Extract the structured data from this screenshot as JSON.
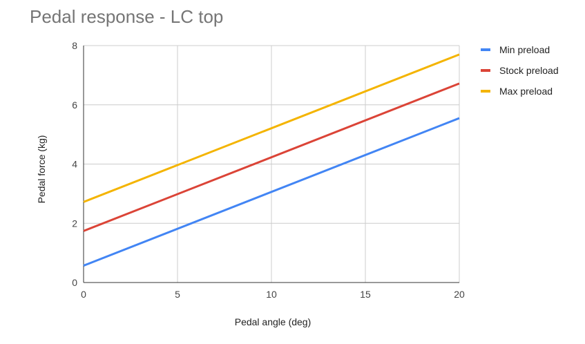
{
  "chart_data": {
    "type": "line",
    "title": "Pedal response - LC top",
    "xlabel": "Pedal angle (deg)",
    "ylabel": "Pedal force (kg)",
    "xlim": [
      0,
      20
    ],
    "ylim": [
      0,
      8
    ],
    "xticks": [
      0,
      5,
      10,
      15,
      20
    ],
    "yticks": [
      0,
      2,
      4,
      6,
      8
    ],
    "grid": true,
    "legend_position": "right",
    "x": [
      0,
      20
    ],
    "series": [
      {
        "name": "Min preload",
        "color": "#4285f4",
        "values": [
          0.57,
          5.55
        ]
      },
      {
        "name": "Stock preload",
        "color": "#db4437",
        "values": [
          1.74,
          6.72
        ]
      },
      {
        "name": "Max preload",
        "color": "#f4b400",
        "values": [
          2.72,
          7.7
        ]
      }
    ]
  }
}
